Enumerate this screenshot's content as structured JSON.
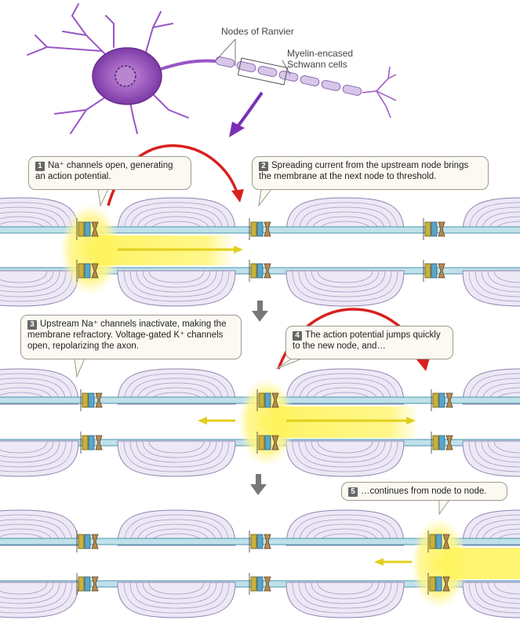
{
  "labels": {
    "nodes_of_ranvier": "Nodes of Ranvier",
    "myelin_line1": "Myelin-encased",
    "myelin_line2": "Schwann cells"
  },
  "steps": [
    {
      "num": "1",
      "html_text": "Na⁺ channels open, generating an action potential."
    },
    {
      "num": "2",
      "html_text": "Spreading current from the upstream node brings the membrane at the next node to threshold."
    },
    {
      "num": "3",
      "html_text": "Upstream Na⁺ channels inactivate, making the membrane refractory. Voltage-gated K⁺ channels open, repolarizing the axon."
    },
    {
      "num": "4",
      "html_text": "The action potential jumps quickly to the new node, and…"
    },
    {
      "num": "5",
      "html_text": "…continues from node to node."
    }
  ],
  "colors": {
    "myelin": "#c9bfdc",
    "membrane": "#7fc0d4",
    "action_potential": "#fff35a",
    "jump_arrow": "#d8201e",
    "neuron": "#9a4fc0",
    "na_channel": "#c8b43c",
    "k_channel": "#5aa6c8"
  }
}
